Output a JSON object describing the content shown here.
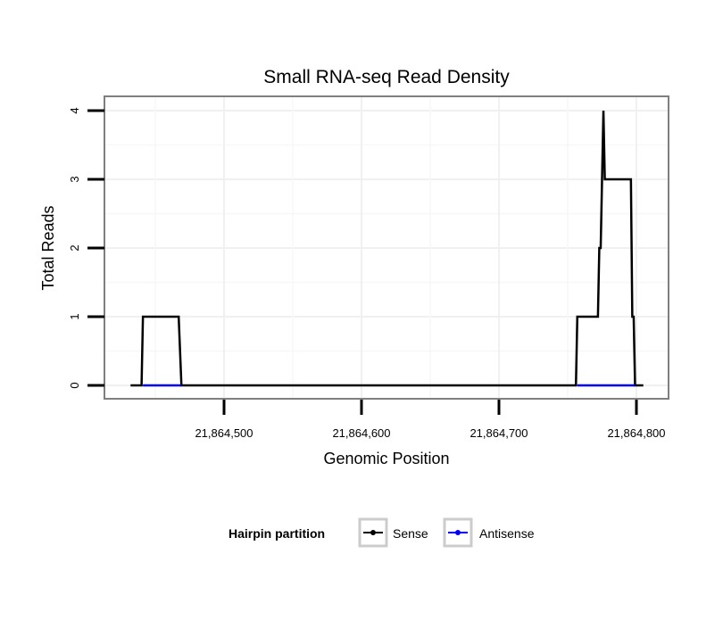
{
  "chart_data": {
    "type": "line",
    "title": "Small RNA-seq Read Density",
    "xlabel": "Genomic Position",
    "ylabel": "Total Reads",
    "xlim": [
      21864415,
      21864825
    ],
    "ylim": [
      -0.2,
      4.2
    ],
    "x_ticks": [
      21864500,
      21864600,
      21864700,
      21864800
    ],
    "x_tick_labels": [
      "21,864,500",
      "21,864,600",
      "21,864,700",
      "21,864,800"
    ],
    "y_ticks": [
      0,
      1,
      2,
      3,
      4
    ],
    "y_tick_labels": [
      "0",
      "1",
      "2",
      "3",
      "4"
    ],
    "grid": true,
    "legend": {
      "title": "Hairpin partition",
      "placement": "bottom",
      "entries": [
        "Sense",
        "Antisense"
      ]
    },
    "series": [
      {
        "name": "Sense",
        "color": "#000000",
        "x": [
          21864432,
          21864440,
          21864441,
          21864467,
          21864469,
          21864756,
          21864757,
          21864772,
          21864773,
          21864774,
          21864775,
          21864776,
          21864777,
          21864796,
          21864797,
          21864798,
          21864799,
          21864805
        ],
        "y": [
          0,
          0,
          1,
          1,
          0,
          0,
          1,
          1,
          2,
          2,
          3,
          4,
          3,
          3,
          1,
          1,
          0,
          0
        ]
      },
      {
        "name": "Antisense",
        "color": "#0000ff",
        "segments": [
          {
            "x": [
              21864441,
              21864469
            ],
            "y": [
              0,
              0
            ]
          },
          {
            "x": [
              21864757,
              21864799
            ],
            "y": [
              0,
              0
            ]
          }
        ]
      }
    ]
  }
}
